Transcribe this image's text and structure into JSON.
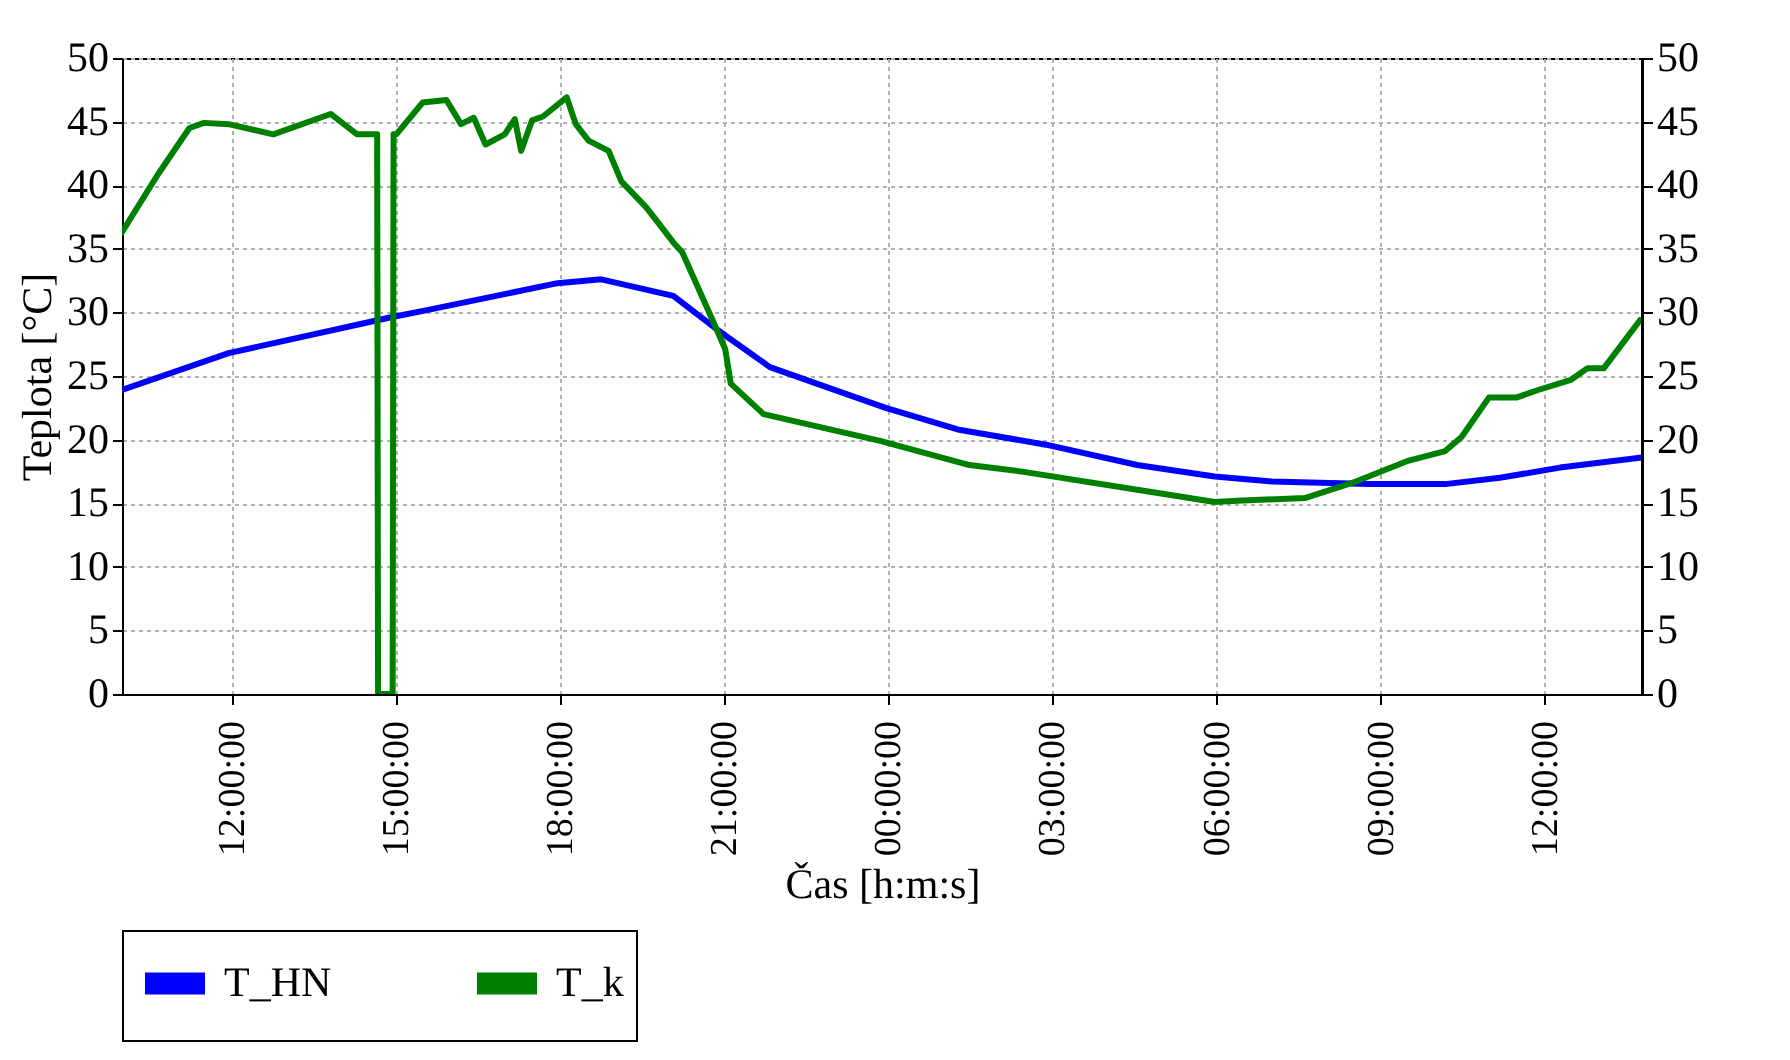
{
  "chart_data": {
    "type": "line",
    "xlabel": "Čas [h:m:s]",
    "ylabel": "Teplota [°C]",
    "xlim": [
      "--01-01T10:00",
      "--01-02T13:48"
    ],
    "xticks": [
      {
        "value": "--01-01T12:00",
        "label": "12:00:00"
      },
      {
        "value": "--01-01T15:00",
        "label": "15:00:00"
      },
      {
        "value": "--01-01T18:00",
        "label": "18:00:00"
      },
      {
        "value": "--01-01T21:00",
        "label": "21:00:00"
      },
      {
        "value": "--01-02T00:00",
        "label": "00:00:00"
      },
      {
        "value": "--01-02T03:00",
        "label": "03:00:00"
      },
      {
        "value": "--01-02T06:00",
        "label": "06:00:00"
      },
      {
        "value": "--01-02T09:00",
        "label": "09:00:00"
      },
      {
        "value": "--01-02T12:00",
        "label": "12:00:00"
      }
    ],
    "ylim": [
      0,
      50
    ],
    "yticks": [
      0,
      5,
      10,
      15,
      20,
      25,
      30,
      35,
      40,
      45,
      50
    ],
    "y2lim": [
      0,
      50
    ],
    "y2ticks": [
      0,
      5,
      10,
      15,
      20,
      25,
      30,
      35,
      40,
      45,
      50
    ],
    "grid": true,
    "legend": "bottom",
    "series": [
      {
        "name": "T_HN",
        "color": "#0000ff",
        "x": [
          "--01-01T10:00",
          "--01-01T11:57",
          "--01-01T14:54",
          "--01-01T15:36",
          "--01-01T17:58",
          "--01-01T18:46",
          "--01-01T20:05",
          "--01-01T20:54",
          "--01-01T21:51",
          "--01-01T22:54",
          "--01-01T23:58",
          "--01-02T01:17",
          "--01-02T02:54",
          "--01-02T04:34",
          "--01-02T05:59",
          "--01-02T07:02",
          "--01-02T08:48",
          "--01-02T10:12",
          "--01-02T11:12",
          "--01-02T12:18",
          "--01-02T13:48"
        ],
        "values": [
          23.9,
          26.8,
          29.6,
          30.2,
          32.3,
          32.6,
          31.3,
          28.6,
          25.7,
          24.1,
          22.5,
          20.8,
          19.6,
          18,
          17.1,
          16.7,
          16.5,
          16.5,
          17,
          17.8,
          18.6
        ]
      },
      {
        "name": "T_k",
        "color": "#008000",
        "x": [
          "--01-01T10:00",
          "--01-01T10:39",
          "--01-01T11:14",
          "--01-01T11:30",
          "--01-01T11:57",
          "--01-01T12:46",
          "--01-01T13:49",
          "--01-01T14:18",
          "--01-01T14:40",
          "--01-01T14:41",
          "--01-01T14:57",
          "--01-01T14:58",
          "--01-01T15:01",
          "--01-01T15:30",
          "--01-01T15:56",
          "--01-01T16:12",
          "--01-01T16:26",
          "--01-01T16:39",
          "--01-01T17:00",
          "--01-01T17:11",
          "--01-01T17:18",
          "--01-01T17:30",
          "--01-01T17:42",
          "--01-01T18:08",
          "--01-01T18:18",
          "--01-01T18:32",
          "--01-01T18:54",
          "--01-01T19:08",
          "--01-01T19:36",
          "--01-01T20:05",
          "--01-01T20:15",
          "--01-01T20:48",
          "--01-01T21:02",
          "--01-01T21:08",
          "--01-01T21:44",
          "--01-01T22:33",
          "--01-01T23:52",
          "--01-02T01:30",
          "--01-02T02:26",
          "--01-02T04:48",
          "--01-02T05:59",
          "--01-02T06:24",
          "--01-02T07:38",
          "--01-02T08:34",
          "--01-02T09:30",
          "--01-02T10:12",
          "--01-02T10:30",
          "--01-02T11:00",
          "--01-02T11:30",
          "--01-02T11:54",
          "--01-02T12:30",
          "--01-02T12:48",
          "--01-02T13:06",
          "--01-02T13:46"
        ],
        "values": [
          36.3,
          40.8,
          44.5,
          44.9,
          44.8,
          44,
          45.6,
          44,
          44,
          0,
          0,
          44,
          44,
          46.5,
          46.7,
          44.8,
          45.3,
          43.2,
          44,
          45.2,
          42.7,
          45.1,
          45.4,
          46.9,
          44.8,
          43.5,
          42.7,
          40.3,
          38.2,
          35.5,
          34.7,
          29.4,
          27.1,
          24.4,
          22,
          21.2,
          19.9,
          18,
          17.5,
          15.9,
          15.1,
          15.2,
          15.4,
          16.7,
          18.3,
          19.1,
          20.2,
          23.3,
          23.3,
          23.9,
          24.7,
          25.6,
          25.6,
          29.4
        ]
      }
    ]
  }
}
